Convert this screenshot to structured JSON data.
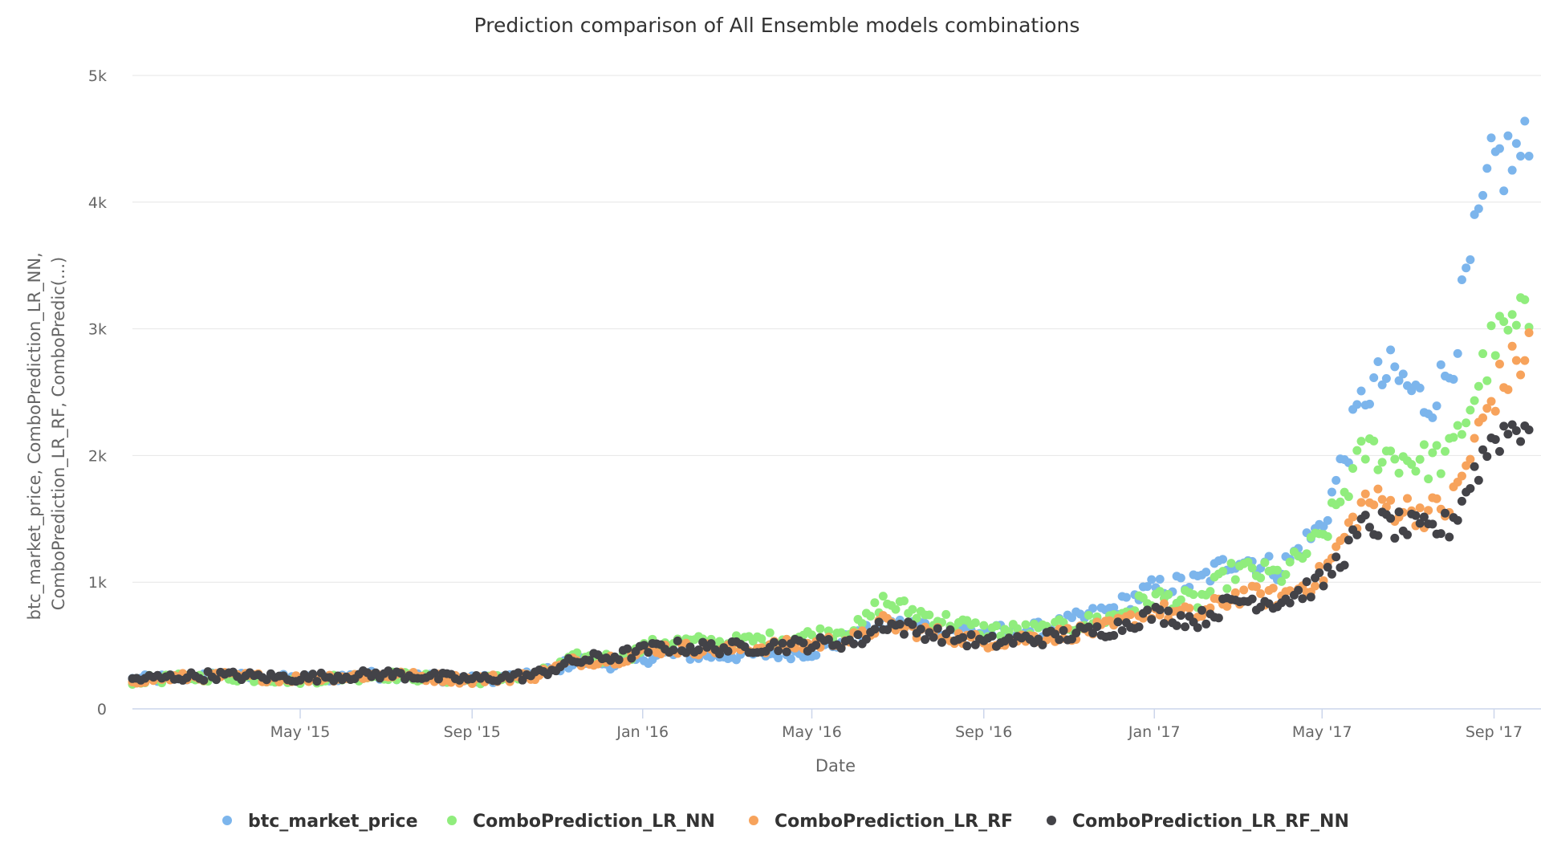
{
  "chart_data": {
    "type": "scatter",
    "title": "Prediction comparison of All Ensemble models combinations",
    "xlabel": "Date",
    "ylabel_lines": [
      "btc_market_price, ComboPrediction_LR_NN,",
      "ComboPrediction_LR_RF, ComboPredic(...)"
    ],
    "x_range": [
      "2015-01-01",
      "2017-09-30"
    ],
    "ylim": [
      0,
      5000
    ],
    "y_ticks": [
      {
        "value": 0,
        "label": "0"
      },
      {
        "value": 1000,
        "label": "1k"
      },
      {
        "value": 2000,
        "label": "2k"
      },
      {
        "value": 3000,
        "label": "3k"
      },
      {
        "value": 4000,
        "label": "4k"
      },
      {
        "value": 5000,
        "label": "5k"
      }
    ],
    "x_ticks": [
      {
        "date": "2015-05-01",
        "label": "May '15"
      },
      {
        "date": "2015-09-01",
        "label": "Sep '15"
      },
      {
        "date": "2016-01-01",
        "label": "Jan '16"
      },
      {
        "date": "2016-05-01",
        "label": "May '16"
      },
      {
        "date": "2016-09-01",
        "label": "Sep '16"
      },
      {
        "date": "2017-01-01",
        "label": "Jan '17"
      },
      {
        "date": "2017-05-01",
        "label": "May '17"
      },
      {
        "date": "2017-09-01",
        "label": "Sep '17"
      }
    ],
    "grid": true,
    "legend_position": "bottom-center",
    "anchor_x": [
      "2015-01-01",
      "2015-03-01",
      "2015-05-01",
      "2015-07-01",
      "2015-09-01",
      "2015-10-15",
      "2015-11-15",
      "2015-12-15",
      "2016-01-15",
      "2016-03-01",
      "2016-05-01",
      "2016-06-05",
      "2016-06-20",
      "2016-07-15",
      "2016-09-01",
      "2016-10-15",
      "2016-12-01",
      "2016-12-31",
      "2017-02-01",
      "2017-03-01",
      "2017-04-01",
      "2017-05-01",
      "2017-06-01",
      "2017-06-20",
      "2017-07-15",
      "2017-08-01",
      "2017-08-15",
      "2017-09-01",
      "2017-09-30"
    ],
    "series": [
      {
        "name": "btc_market_price",
        "color": "#7cb5ec",
        "values": [
          230,
          260,
          235,
          270,
          230,
          260,
          380,
          350,
          430,
          420,
          450,
          580,
          660,
          660,
          600,
          630,
          780,
          950,
          1000,
          1200,
          1100,
          1450,
          2500,
          2650,
          2400,
          2700,
          3500,
          4300,
          4400
        ]
      },
      {
        "name": "ComboPrediction_LR_NN",
        "color": "#90ed7d",
        "values": [
          225,
          255,
          230,
          265,
          225,
          255,
          400,
          400,
          530,
          520,
          580,
          650,
          850,
          760,
          620,
          620,
          720,
          880,
          850,
          1100,
          1050,
          1350,
          2050,
          2000,
          1950,
          2000,
          2400,
          2900,
          3100
        ]
      },
      {
        "name": "ComboPrediction_LR_RF",
        "color": "#f7a35c",
        "values": [
          230,
          260,
          240,
          270,
          230,
          260,
          380,
          400,
          480,
          470,
          510,
          560,
          680,
          620,
          530,
          570,
          640,
          780,
          730,
          900,
          880,
          1050,
          1650,
          1600,
          1550,
          1600,
          2000,
          2500,
          2900
        ]
      },
      {
        "name": "ComboPrediction_LR_RF_NN",
        "color": "#434348",
        "values": [
          235,
          265,
          245,
          275,
          235,
          265,
          380,
          420,
          490,
          480,
          510,
          540,
          680,
          620,
          520,
          560,
          630,
          750,
          700,
          860,
          850,
          1000,
          1450,
          1450,
          1400,
          1450,
          1800,
          2150,
          2300
        ]
      }
    ]
  }
}
